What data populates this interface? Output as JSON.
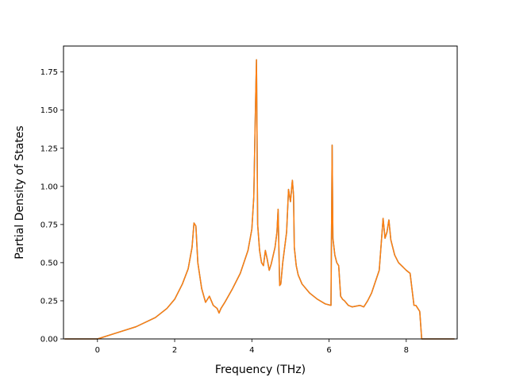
{
  "chart_data": {
    "type": "line",
    "title": "",
    "xlabel": "Frequency (THz)",
    "ylabel": "Partial Density of States",
    "xlim": [
      -0.88,
      9.32
    ],
    "ylim": [
      0.0,
      1.92
    ],
    "xticks": [
      0,
      2,
      4,
      6,
      8
    ],
    "xtick_labels": [
      "0",
      "2",
      "4",
      "6",
      "8"
    ],
    "yticks": [
      0.0,
      0.25,
      0.5,
      0.75,
      1.0,
      1.25,
      1.5,
      1.75
    ],
    "ytick_labels": [
      "0.00",
      "0.25",
      "0.50",
      "0.75",
      "1.00",
      "1.25",
      "1.50",
      "1.75"
    ],
    "grid": false,
    "series": [
      {
        "color": "#1f77b4",
        "x": [
          -0.85,
          0.0,
          0.5,
          1.0,
          1.5,
          1.8,
          2.0,
          2.2,
          2.35,
          2.45,
          2.5,
          2.55,
          2.6,
          2.7,
          2.8,
          2.9,
          3.0,
          3.1,
          3.15,
          3.2,
          3.3,
          3.5,
          3.7,
          3.9,
          4.0,
          4.05,
          4.1,
          4.12,
          4.15,
          4.2,
          4.25,
          4.3,
          4.35,
          4.4,
          4.45,
          4.5,
          4.6,
          4.65,
          4.68,
          4.72,
          4.75,
          4.8,
          4.9,
          4.95,
          5.0,
          5.05,
          5.08,
          5.1,
          5.15,
          5.2,
          5.3,
          5.5,
          5.7,
          5.9,
          6.05,
          6.08,
          6.1,
          6.15,
          6.2,
          6.25,
          6.3,
          6.35,
          6.4,
          6.5,
          6.6,
          6.8,
          6.9,
          7.0,
          7.1,
          7.3,
          7.4,
          7.45,
          7.5,
          7.55,
          7.6,
          7.7,
          7.8,
          8.0,
          8.1,
          8.2,
          8.25,
          8.3,
          8.35,
          8.4,
          8.5,
          9.25
        ],
        "y": [
          0.0,
          0.0,
          0.04,
          0.08,
          0.14,
          0.2,
          0.26,
          0.36,
          0.46,
          0.6,
          0.76,
          0.74,
          0.5,
          0.33,
          0.24,
          0.28,
          0.22,
          0.2,
          0.17,
          0.2,
          0.24,
          0.33,
          0.43,
          0.58,
          0.72,
          0.93,
          1.6,
          1.83,
          0.75,
          0.58,
          0.5,
          0.48,
          0.58,
          0.52,
          0.45,
          0.49,
          0.6,
          0.7,
          0.85,
          0.35,
          0.36,
          0.5,
          0.7,
          0.98,
          0.9,
          1.04,
          0.94,
          0.6,
          0.48,
          0.42,
          0.36,
          0.3,
          0.26,
          0.23,
          0.22,
          1.27,
          0.66,
          0.55,
          0.5,
          0.48,
          0.28,
          0.26,
          0.25,
          0.22,
          0.21,
          0.22,
          0.21,
          0.25,
          0.3,
          0.45,
          0.79,
          0.66,
          0.7,
          0.78,
          0.65,
          0.55,
          0.5,
          0.45,
          0.43,
          0.22,
          0.22,
          0.2,
          0.18,
          0.0,
          0.0,
          0.0
        ]
      },
      {
        "color": "#ff7f0e",
        "x": [
          -0.85,
          0.0,
          0.5,
          1.0,
          1.5,
          1.8,
          2.0,
          2.2,
          2.35,
          2.45,
          2.5,
          2.55,
          2.6,
          2.7,
          2.8,
          2.9,
          3.0,
          3.1,
          3.15,
          3.2,
          3.3,
          3.5,
          3.7,
          3.9,
          4.0,
          4.05,
          4.1,
          4.12,
          4.15,
          4.2,
          4.25,
          4.3,
          4.35,
          4.4,
          4.45,
          4.5,
          4.6,
          4.65,
          4.68,
          4.72,
          4.75,
          4.8,
          4.9,
          4.95,
          5.0,
          5.05,
          5.08,
          5.1,
          5.15,
          5.2,
          5.3,
          5.5,
          5.7,
          5.9,
          6.05,
          6.08,
          6.1,
          6.15,
          6.2,
          6.25,
          6.3,
          6.35,
          6.4,
          6.5,
          6.6,
          6.8,
          6.9,
          7.0,
          7.1,
          7.3,
          7.4,
          7.45,
          7.5,
          7.55,
          7.6,
          7.7,
          7.8,
          8.0,
          8.1,
          8.2,
          8.25,
          8.3,
          8.35,
          8.4,
          8.5,
          9.25
        ],
        "y": [
          0.0,
          0.0,
          0.04,
          0.08,
          0.14,
          0.2,
          0.26,
          0.36,
          0.46,
          0.6,
          0.76,
          0.74,
          0.5,
          0.33,
          0.24,
          0.28,
          0.22,
          0.2,
          0.17,
          0.2,
          0.24,
          0.33,
          0.43,
          0.58,
          0.72,
          0.93,
          1.6,
          1.83,
          0.75,
          0.58,
          0.5,
          0.48,
          0.58,
          0.52,
          0.45,
          0.49,
          0.6,
          0.7,
          0.85,
          0.35,
          0.36,
          0.5,
          0.7,
          0.98,
          0.9,
          1.04,
          0.94,
          0.6,
          0.48,
          0.42,
          0.36,
          0.3,
          0.26,
          0.23,
          0.22,
          1.27,
          0.66,
          0.55,
          0.5,
          0.48,
          0.28,
          0.26,
          0.25,
          0.22,
          0.21,
          0.22,
          0.21,
          0.25,
          0.3,
          0.45,
          0.79,
          0.66,
          0.7,
          0.78,
          0.65,
          0.55,
          0.5,
          0.45,
          0.43,
          0.22,
          0.22,
          0.2,
          0.18,
          0.0,
          0.0,
          0.0
        ]
      }
    ]
  }
}
